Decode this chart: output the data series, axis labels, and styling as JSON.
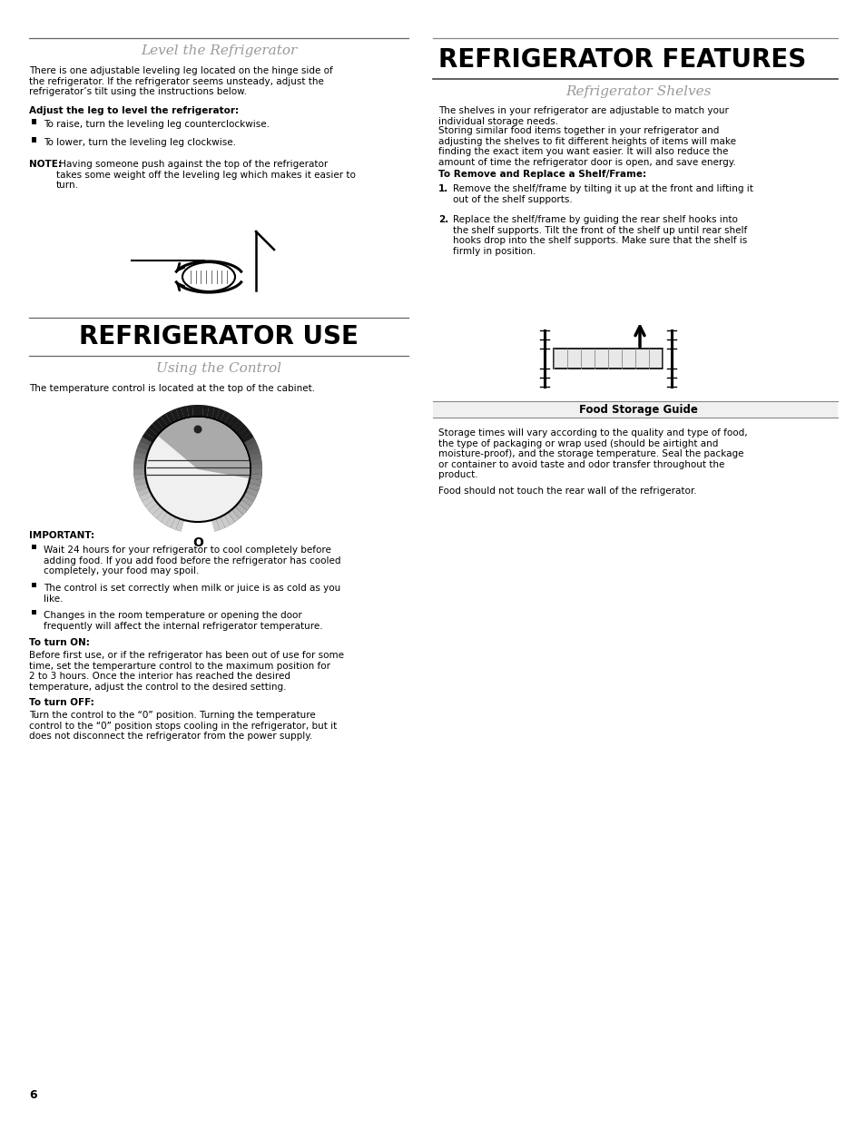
{
  "page_number": "6",
  "bg_color": "#ffffff",
  "text_color": "#000000",
  "gray_heading_color": "#999999",
  "left_col": {
    "section1_title": "Level the Refrigerator",
    "section1_body": "There is one adjustable leveling leg located on the hinge side of\nthe refrigerator. If the refrigerator seems unsteady, adjust the\nrefrigerator’s tilt using the instructions below.",
    "section1_bold": "Adjust the leg to level the refrigerator:",
    "section1_bullets": [
      "To raise, turn the leveling leg counterclockwise.",
      "To lower, turn the leveling leg clockwise."
    ],
    "section1_note_bold": "NOTE:",
    "section1_note_rest": " Having someone push against the top of the refrigerator\ntakes some weight off the leveling leg which makes it easier to\nturn.",
    "section2_title": "REFRIGERATOR USE",
    "section2_subtitle": "Using the Control",
    "section2_body": "The temperature control is located at the top of the cabinet.",
    "important_label": "IMPORTANT:",
    "important_bullets": [
      "Wait 24 hours for your refrigerator to cool completely before\nadding food. If you add food before the refrigerator has cooled\ncompletely, your food may spoil.",
      "The control is set correctly when milk or juice is as cold as you\nlike.",
      "Changes in the room temperature or opening the door\nfrequently will affect the internal refrigerator temperature."
    ],
    "turn_on_label": "To turn ON:",
    "turn_on_body": "Before first use, or if the refrigerator has been out of use for some\ntime, set the temperarture control to the maximum position for\n2 to 3 hours. Once the interior has reached the desired\ntemperature, adjust the control to the desired setting.",
    "turn_off_label": "To turn OFF:",
    "turn_off_body": "Turn the control to the “0” position. Turning the temperature\ncontrol to the “0” position stops cooling in the refrigerator, but it\ndoes not disconnect the refrigerator from the power supply."
  },
  "right_col": {
    "section1_title": "REFRIGERATOR FEATURES",
    "section1_subtitle": "Refrigerator Shelves",
    "section1_body": "The shelves in your refrigerator are adjustable to match your\nindividual storage needs.",
    "section1_body2": "Storing similar food items together in your refrigerator and\nadjusting the shelves to fit different heights of items will make\nfinding the exact item you want easier. It will also reduce the\namount of time the refrigerator door is open, and save energy.",
    "section1_bold": "To Remove and Replace a Shelf/Frame:",
    "section1_numbered": [
      "Remove the shelf/frame by tilting it up at the front and lifting it\nout of the shelf supports.",
      "Replace the shelf/frame by guiding the rear shelf hooks into\nthe shelf supports. Tilt the front of the shelf up until rear shelf\nhooks drop into the shelf supports. Make sure that the shelf is\nfirmly in position."
    ],
    "food_storage_label": "Food Storage Guide",
    "food_storage_body": "Storage times will vary according to the quality and type of food,\nthe type of packaging or wrap used (should be airtight and\nmoisture-proof), and the storage temperature. Seal the package\nor container to avoid taste and odor transfer throughout the\nproduct.",
    "food_storage_body2": "Food should not touch the rear wall of the refrigerator."
  }
}
